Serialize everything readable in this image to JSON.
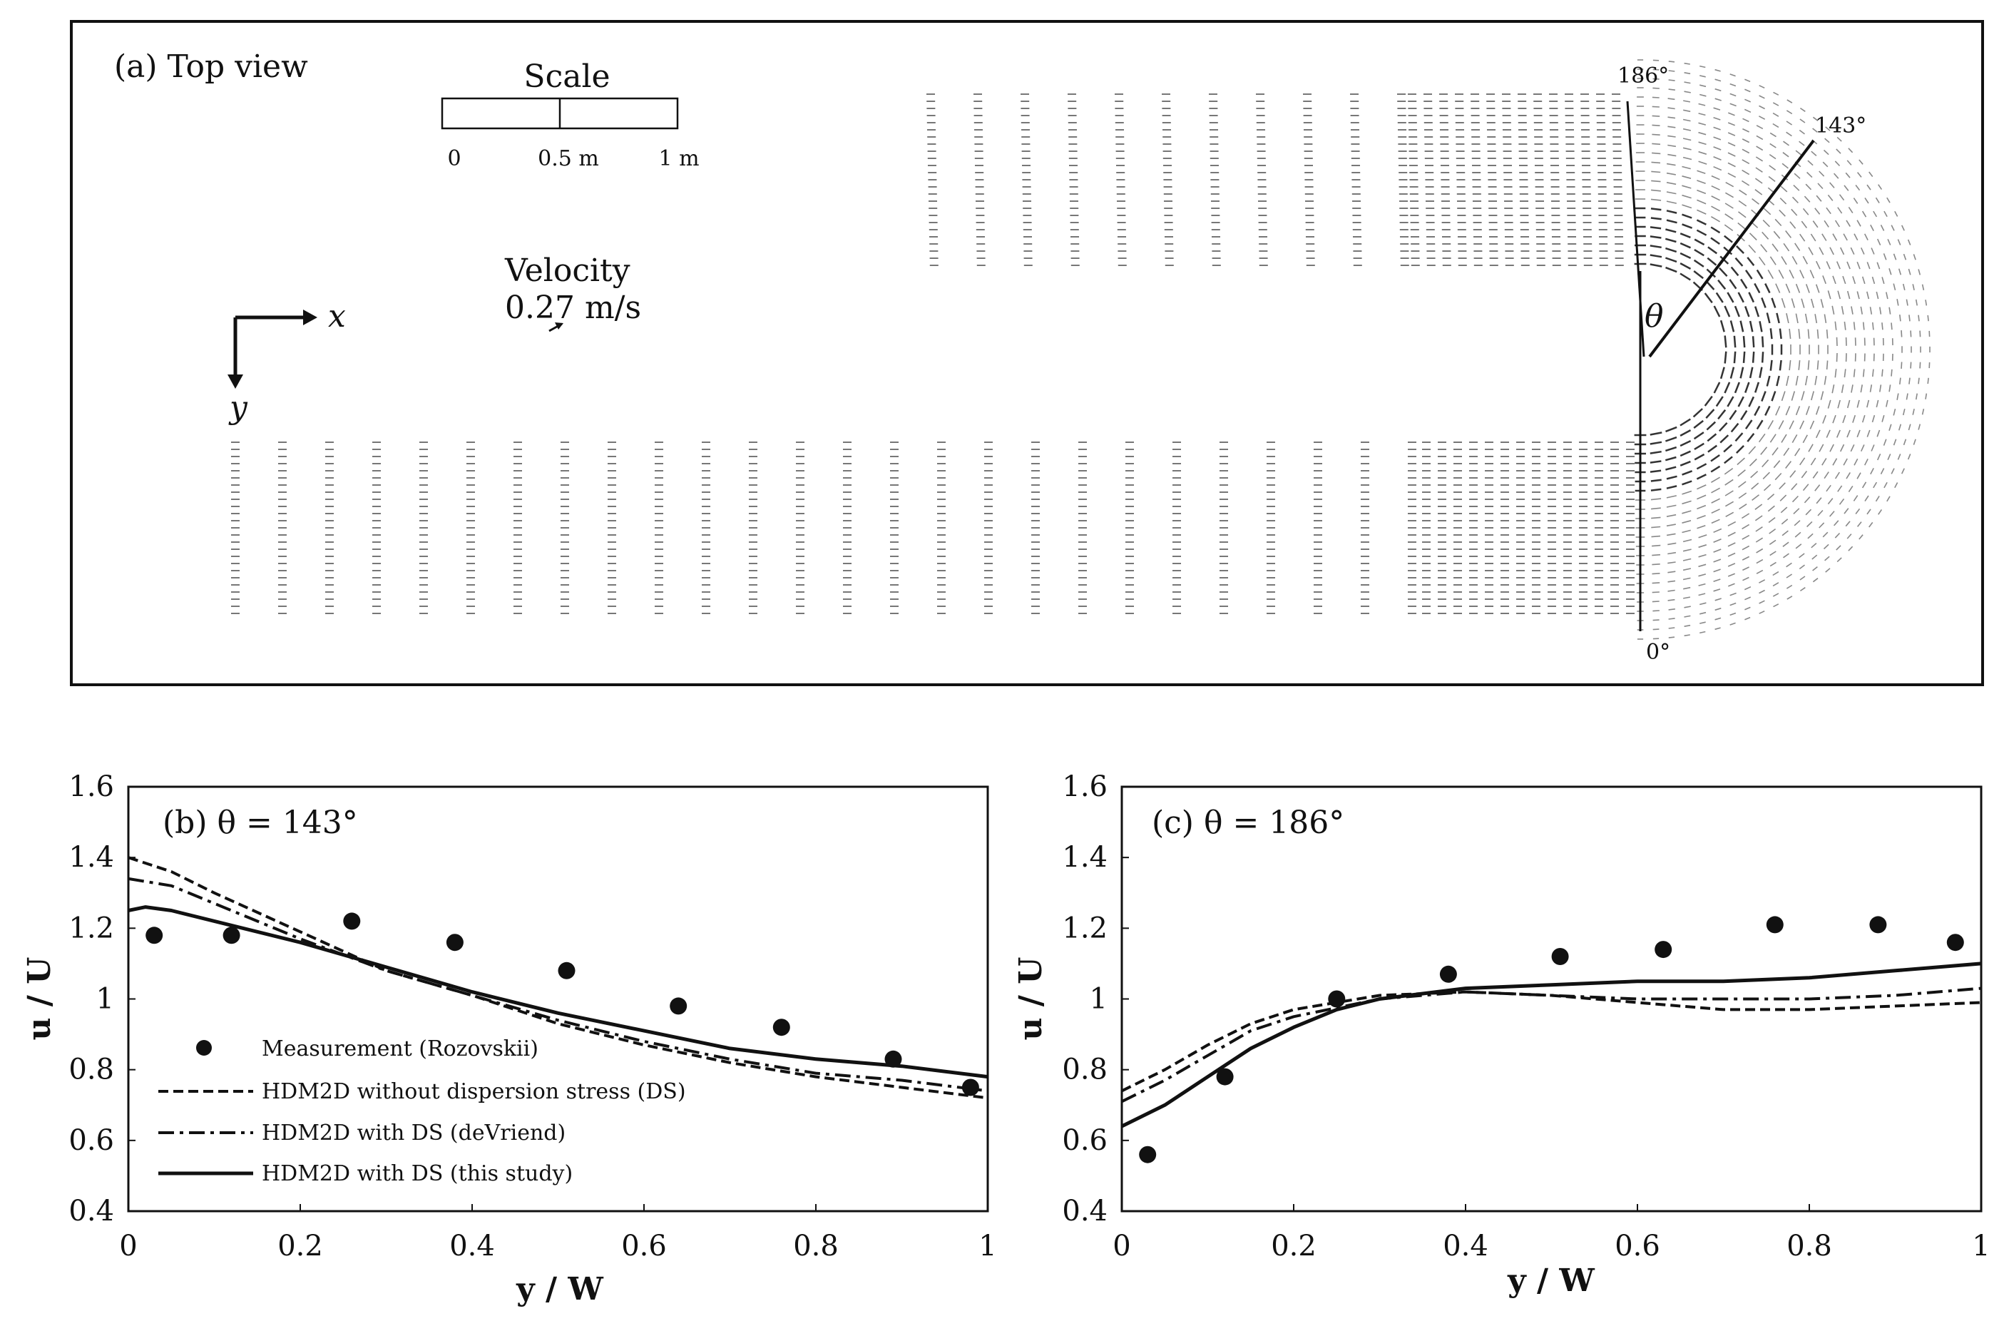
{
  "top_view": {
    "title": "(a) Top view",
    "scale": {
      "label": "Scale",
      "ticks": [
        "0",
        "0.5 m",
        "1 m"
      ]
    },
    "velocity": {
      "label": "Velocity",
      "value": "0.27 m/s"
    },
    "axes": {
      "x": "x",
      "y": "y"
    },
    "angles": {
      "a186": "186°",
      "a143": "143°",
      "a0": "0°",
      "theta": "θ"
    }
  },
  "chart_data": [
    {
      "id": "b",
      "type": "line",
      "title": "(b) θ = 143°",
      "xlabel": "y / W",
      "ylabel": "u / U",
      "xlim": [
        0,
        1
      ],
      "ylim": [
        0.4,
        1.6
      ],
      "xticks": [
        "0",
        "0.2",
        "0.4",
        "0.6",
        "0.8",
        "1"
      ],
      "yticks": [
        "0.4",
        "0.6",
        "0.8",
        "1",
        "1.2",
        "1.4",
        "1.6"
      ],
      "measurement": {
        "name": "Measurement (Rozovskii)",
        "x": [
          0.03,
          0.12,
          0.26,
          0.38,
          0.51,
          0.64,
          0.76,
          0.89,
          0.98
        ],
        "y": [
          1.18,
          1.18,
          1.22,
          1.16,
          1.08,
          0.98,
          0.92,
          0.83,
          0.75
        ]
      },
      "series": [
        {
          "name": "HDM2D without dispersion stress (DS)",
          "style": "dashed",
          "x": [
            0,
            0.05,
            0.1,
            0.2,
            0.3,
            0.4,
            0.5,
            0.6,
            0.7,
            0.8,
            0.9,
            1.0
          ],
          "y": [
            1.4,
            1.36,
            1.3,
            1.19,
            1.08,
            1.01,
            0.93,
            0.87,
            0.82,
            0.78,
            0.75,
            0.72
          ]
        },
        {
          "name": "HDM2D with DS (deVriend)",
          "style": "dashdot",
          "x": [
            0,
            0.05,
            0.1,
            0.2,
            0.3,
            0.4,
            0.5,
            0.6,
            0.7,
            0.8,
            0.9,
            1.0
          ],
          "y": [
            1.34,
            1.32,
            1.27,
            1.17,
            1.08,
            1.01,
            0.94,
            0.88,
            0.83,
            0.79,
            0.77,
            0.74
          ]
        },
        {
          "name": "HDM2D with DS (this study)",
          "style": "solid",
          "x": [
            0,
            0.02,
            0.05,
            0.1,
            0.2,
            0.3,
            0.4,
            0.5,
            0.6,
            0.7,
            0.8,
            0.9,
            1.0
          ],
          "y": [
            1.25,
            1.26,
            1.25,
            1.22,
            1.16,
            1.09,
            1.02,
            0.96,
            0.91,
            0.86,
            0.83,
            0.81,
            0.78
          ]
        }
      ]
    },
    {
      "id": "c",
      "type": "line",
      "title": "(c) θ = 186°",
      "xlabel": "y / W",
      "ylabel": "u / U",
      "xlim": [
        0,
        1
      ],
      "ylim": [
        0.4,
        1.6
      ],
      "xticks": [
        "0",
        "0.2",
        "0.4",
        "0.6",
        "0.8",
        "1"
      ],
      "yticks": [
        "0.4",
        "0.6",
        "0.8",
        "1",
        "1.2",
        "1.4",
        "1.6"
      ],
      "measurement": {
        "name": "Measurement (Rozovskii)",
        "x": [
          0.03,
          0.12,
          0.25,
          0.38,
          0.51,
          0.63,
          0.76,
          0.88,
          0.97
        ],
        "y": [
          0.56,
          0.78,
          1.0,
          1.07,
          1.12,
          1.14,
          1.21,
          1.21,
          1.16
        ]
      },
      "series": [
        {
          "name": "HDM2D without dispersion stress (DS)",
          "style": "dashed",
          "x": [
            0,
            0.05,
            0.1,
            0.15,
            0.2,
            0.3,
            0.4,
            0.5,
            0.6,
            0.7,
            0.8,
            0.9,
            1.0
          ],
          "y": [
            0.74,
            0.8,
            0.87,
            0.93,
            0.97,
            1.01,
            1.02,
            1.01,
            0.99,
            0.97,
            0.97,
            0.98,
            0.99
          ]
        },
        {
          "name": "HDM2D with DS (deVriend)",
          "style": "dashdot",
          "x": [
            0,
            0.05,
            0.1,
            0.15,
            0.2,
            0.3,
            0.4,
            0.5,
            0.6,
            0.7,
            0.8,
            0.9,
            1.0
          ],
          "y": [
            0.71,
            0.77,
            0.84,
            0.91,
            0.95,
            1.0,
            1.02,
            1.01,
            1.0,
            1.0,
            1.0,
            1.01,
            1.03
          ]
        },
        {
          "name": "HDM2D with DS (this study)",
          "style": "solid",
          "x": [
            0,
            0.05,
            0.1,
            0.15,
            0.2,
            0.25,
            0.3,
            0.4,
            0.5,
            0.6,
            0.7,
            0.8,
            0.9,
            1.0
          ],
          "y": [
            0.64,
            0.7,
            0.78,
            0.86,
            0.92,
            0.97,
            1.0,
            1.03,
            1.04,
            1.05,
            1.05,
            1.06,
            1.08,
            1.1
          ]
        }
      ]
    }
  ]
}
